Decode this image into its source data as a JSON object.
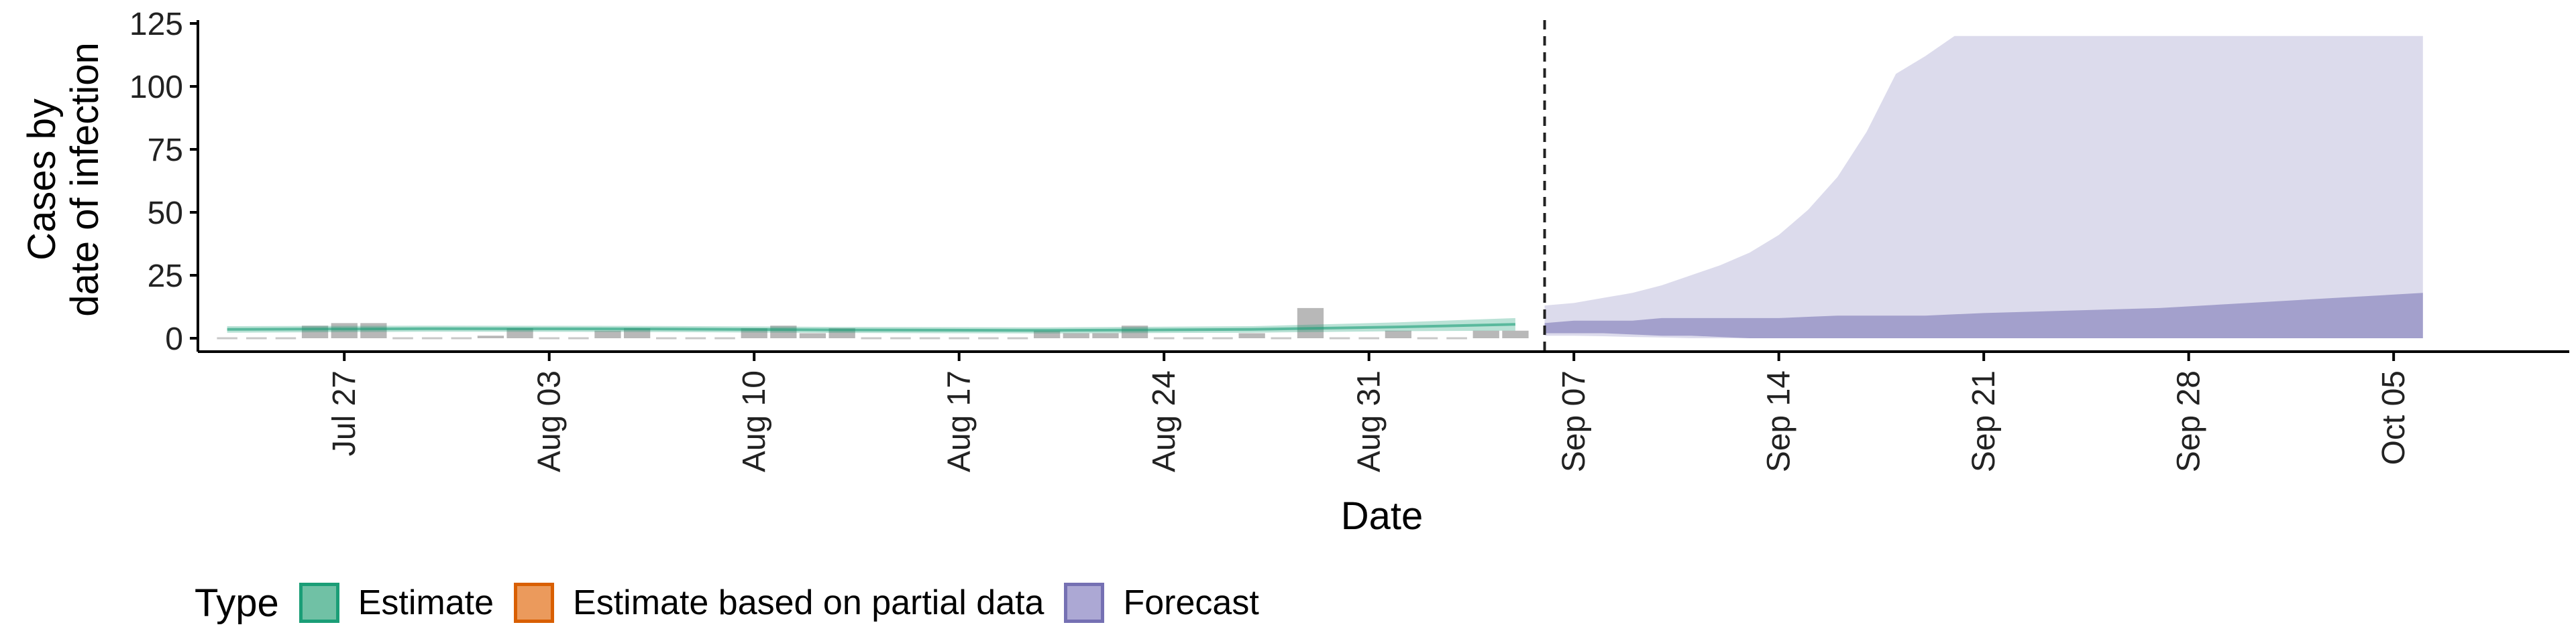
{
  "chart_data": {
    "type": "area",
    "xlabel": "Date",
    "ylabel": [
      "Cases by",
      "date of infection"
    ],
    "ylim": [
      0,
      125
    ],
    "y_ticks": [
      0,
      25,
      50,
      75,
      100,
      125
    ],
    "x_ticks": [
      "Jul 27",
      "Aug 03",
      "Aug 10",
      "Aug 17",
      "Aug 24",
      "Aug 31",
      "Sep 07",
      "Sep 14",
      "Sep 21",
      "Sep 28",
      "Oct 05"
    ],
    "x_start": "2020-07-22",
    "x_end": "2020-10-11",
    "x_tick_dates": [
      "2020-07-27",
      "2020-08-03",
      "2020-08-10",
      "2020-08-17",
      "2020-08-24",
      "2020-08-31",
      "2020-09-07",
      "2020-09-14",
      "2020-09-21",
      "2020-09-28",
      "2020-10-05"
    ],
    "forecast_start": "2020-09-06",
    "grid": false,
    "reported_cases": {
      "dates": [
        "2020-07-23",
        "2020-07-24",
        "2020-07-25",
        "2020-07-26",
        "2020-07-27",
        "2020-07-28",
        "2020-07-29",
        "2020-07-30",
        "2020-07-31",
        "2020-08-01",
        "2020-08-02",
        "2020-08-03",
        "2020-08-04",
        "2020-08-05",
        "2020-08-06",
        "2020-08-07",
        "2020-08-08",
        "2020-08-09",
        "2020-08-10",
        "2020-08-11",
        "2020-08-12",
        "2020-08-13",
        "2020-08-14",
        "2020-08-15",
        "2020-08-16",
        "2020-08-17",
        "2020-08-18",
        "2020-08-19",
        "2020-08-20",
        "2020-08-21",
        "2020-08-22",
        "2020-08-23",
        "2020-08-24",
        "2020-08-25",
        "2020-08-26",
        "2020-08-27",
        "2020-08-28",
        "2020-08-29",
        "2020-08-30",
        "2020-08-31",
        "2020-09-01",
        "2020-09-02",
        "2020-09-03",
        "2020-09-04",
        "2020-09-05"
      ],
      "values": [
        0,
        0,
        0,
        5,
        6,
        6,
        0,
        0,
        0,
        1,
        4,
        0,
        0,
        3,
        4,
        0,
        0,
        0,
        4,
        5,
        2,
        4,
        0,
        0,
        0,
        0,
        0,
        0,
        3,
        2,
        2,
        5,
        0,
        0,
        0,
        2,
        0,
        12,
        0,
        0,
        3,
        0,
        0,
        3,
        3
      ]
    },
    "series": [
      {
        "name": "Estimate",
        "color": "#1b9e77",
        "dates": [
          "2020-07-23",
          "2020-07-30",
          "2020-08-06",
          "2020-08-13",
          "2020-08-20",
          "2020-08-27",
          "2020-09-01",
          "2020-09-05"
        ],
        "median": [
          3.5,
          3.8,
          3.7,
          3.3,
          3.1,
          3.5,
          4.5,
          5.5
        ],
        "lower": [
          2.2,
          2.6,
          2.5,
          2.1,
          1.9,
          2.2,
          2.8,
          3.0
        ],
        "upper": [
          4.8,
          5.0,
          4.9,
          4.5,
          4.3,
          4.8,
          6.3,
          8.0
        ]
      },
      {
        "name": "Estimate based on partial data",
        "color": "#d95f02",
        "dates": [],
        "median": [],
        "lower": [],
        "upper": []
      },
      {
        "name": "Forecast",
        "color": "#7570b3",
        "dates": [
          "2020-09-06",
          "2020-09-07",
          "2020-09-08",
          "2020-09-09",
          "2020-09-10",
          "2020-09-11",
          "2020-09-12",
          "2020-09-13",
          "2020-09-14",
          "2020-09-15",
          "2020-09-16",
          "2020-09-17",
          "2020-09-18",
          "2020-09-19",
          "2020-09-20",
          "2020-09-21",
          "2020-09-24",
          "2020-09-27",
          "2020-09-30",
          "2020-10-03",
          "2020-10-06"
        ],
        "outer_lower": [
          1,
          1,
          0.8,
          0.5,
          0.3,
          0,
          0,
          0,
          0,
          0,
          0,
          0,
          0,
          0,
          0,
          0,
          0,
          0,
          0,
          0,
          0
        ],
        "outer_upper": [
          13,
          14,
          16,
          18,
          21,
          25,
          29,
          34,
          41,
          51,
          64,
          82,
          105,
          112,
          120,
          120,
          120,
          120,
          120,
          120,
          120
        ],
        "inner_lower": [
          2,
          2,
          2,
          1.5,
          1,
          1,
          0.5,
          0,
          0,
          0,
          0,
          0,
          0,
          0,
          0,
          0,
          0,
          0,
          0,
          0,
          0
        ],
        "inner_upper": [
          6,
          7,
          7,
          7,
          8,
          8,
          8,
          8,
          8,
          8.5,
          9,
          9,
          9,
          9,
          9.5,
          10,
          11,
          12,
          14,
          16,
          18
        ]
      }
    ]
  },
  "legend": {
    "title": "Type",
    "items": [
      {
        "label": "Estimate",
        "fill": "#70c1a5",
        "border": "#1b9e77"
      },
      {
        "label": "Estimate based on partial data",
        "fill": "#eb9a5c",
        "border": "#d95f02"
      },
      {
        "label": "Forecast",
        "fill": "#aca8d4",
        "border": "#7570b3"
      }
    ]
  }
}
